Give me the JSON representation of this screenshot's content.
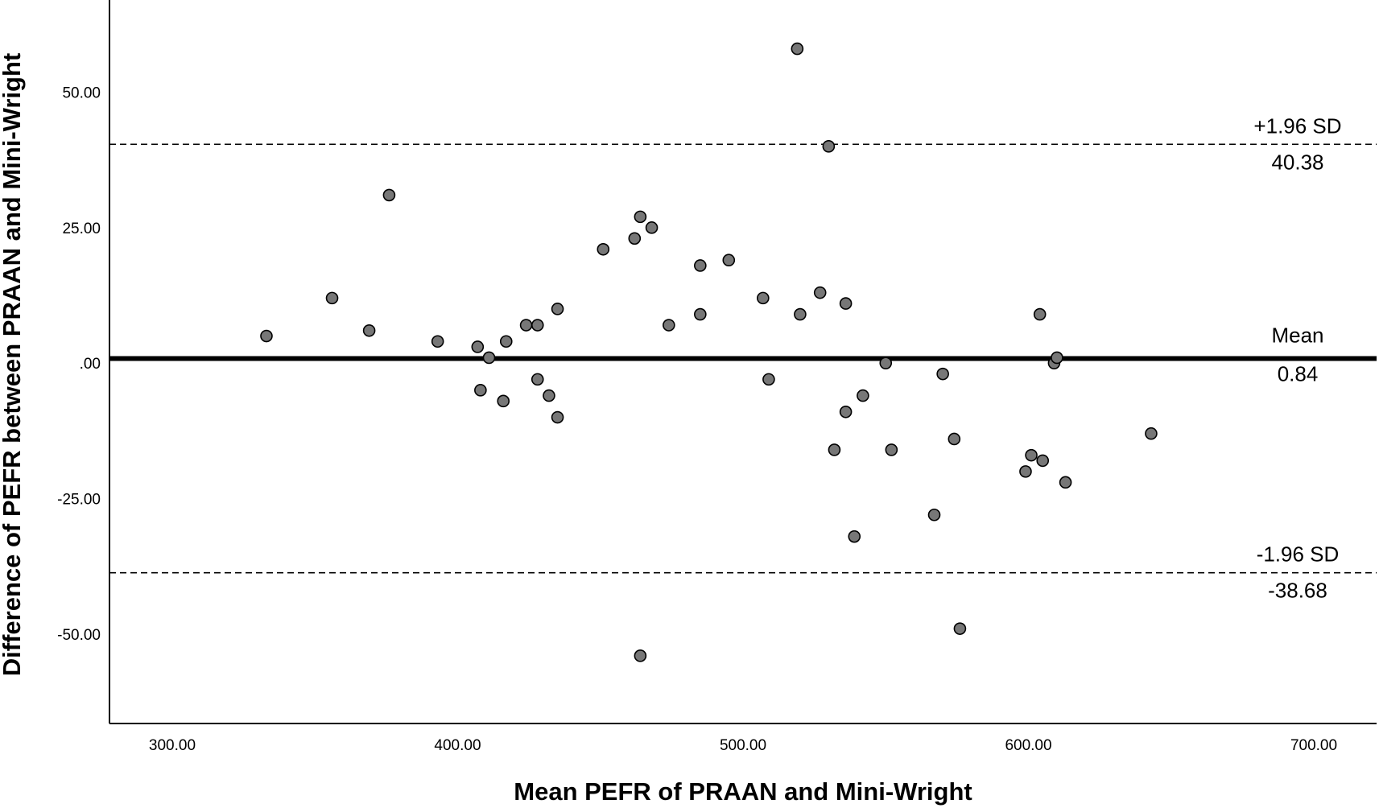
{
  "chart_data": {
    "type": "scatter",
    "xlabel": "Mean PEFR of PRAAN and Mini-Wright",
    "ylabel": "Difference of PEFR between PRAAN and Mini-Wright",
    "xlim": [
      278,
      722
    ],
    "ylim": [
      -66.5,
      67
    ],
    "x_ticks": [
      300,
      400,
      500,
      600,
      700
    ],
    "x_tick_labels": [
      "300.00",
      "400.00",
      "500.00",
      "600.00",
      "700.00"
    ],
    "y_ticks": [
      -50,
      -25,
      0,
      25,
      50
    ],
    "y_tick_labels": [
      "-50.00",
      "-25.00",
      ".00",
      "25.00",
      "50.00"
    ],
    "grid": false,
    "reference_lines": [
      {
        "name": "mean",
        "label": "Mean",
        "value_label": "0.84",
        "y": 0.84,
        "style": "solid"
      },
      {
        "name": "upper-loa",
        "label": "+1.96 SD",
        "value_label": "40.38",
        "y": 40.38,
        "style": "dashed"
      },
      {
        "name": "lower-loa",
        "label": "-1.96 SD",
        "value_label": "-38.68",
        "y": -38.68,
        "style": "dashed"
      }
    ],
    "points": [
      {
        "x": 333,
        "y": 5
      },
      {
        "x": 356,
        "y": 12
      },
      {
        "x": 369,
        "y": 6
      },
      {
        "x": 376,
        "y": 31
      },
      {
        "x": 393,
        "y": 4
      },
      {
        "x": 407,
        "y": 3
      },
      {
        "x": 408,
        "y": -5
      },
      {
        "x": 411,
        "y": 1
      },
      {
        "x": 417,
        "y": 4
      },
      {
        "x": 416,
        "y": -7
      },
      {
        "x": 424,
        "y": 7
      },
      {
        "x": 428,
        "y": 7
      },
      {
        "x": 428,
        "y": -3
      },
      {
        "x": 432,
        "y": -6
      },
      {
        "x": 435,
        "y": 10
      },
      {
        "x": 435,
        "y": -10
      },
      {
        "x": 451,
        "y": 21
      },
      {
        "x": 462,
        "y": 23
      },
      {
        "x": 464,
        "y": 27
      },
      {
        "x": 468,
        "y": 25
      },
      {
        "x": 464,
        "y": -54
      },
      {
        "x": 474,
        "y": 7
      },
      {
        "x": 485,
        "y": 18
      },
      {
        "x": 485,
        "y": 9
      },
      {
        "x": 495,
        "y": 19
      },
      {
        "x": 507,
        "y": 12
      },
      {
        "x": 509,
        "y": -3
      },
      {
        "x": 519,
        "y": 58
      },
      {
        "x": 520,
        "y": 9
      },
      {
        "x": 527,
        "y": 13
      },
      {
        "x": 530,
        "y": 40
      },
      {
        "x": 532,
        "y": -16
      },
      {
        "x": 536,
        "y": 11
      },
      {
        "x": 536,
        "y": -9
      },
      {
        "x": 539,
        "y": -32
      },
      {
        "x": 542,
        "y": -6
      },
      {
        "x": 550,
        "y": 0
      },
      {
        "x": 552,
        "y": -16
      },
      {
        "x": 567,
        "y": -28
      },
      {
        "x": 570,
        "y": -2
      },
      {
        "x": 574,
        "y": -14
      },
      {
        "x": 576,
        "y": -49
      },
      {
        "x": 599,
        "y": -20
      },
      {
        "x": 601,
        "y": -17
      },
      {
        "x": 604,
        "y": 9
      },
      {
        "x": 605,
        "y": -18
      },
      {
        "x": 609,
        "y": 0
      },
      {
        "x": 610,
        "y": 1
      },
      {
        "x": 613,
        "y": -22
      },
      {
        "x": 643,
        "y": -13
      }
    ]
  }
}
